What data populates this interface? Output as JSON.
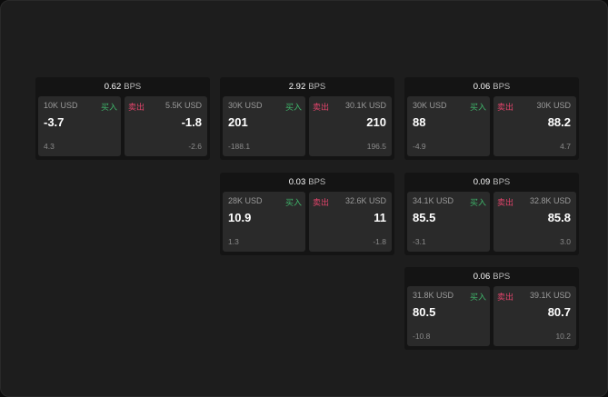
{
  "buy_label": "买入",
  "sell_label": "卖出",
  "unit": "BPS",
  "colors": {
    "buy": "#3fb66b",
    "sell": "#e0446b"
  },
  "panels": [
    {
      "spread": "0.62",
      "bid": {
        "size": "10K USD",
        "price": "-3.7",
        "sub": "4.3"
      },
      "ask": {
        "size": "5.5K USD",
        "price": "-1.8",
        "sub": "-2.6"
      }
    },
    {
      "spread": "2.92",
      "bid": {
        "size": "30K USD",
        "price": "201",
        "sub": "-188.1"
      },
      "ask": {
        "size": "30.1K USD",
        "price": "210",
        "sub": "196.5"
      }
    },
    {
      "spread": "0.06",
      "bid": {
        "size": "30K USD",
        "price": "88",
        "sub": "-4.9"
      },
      "ask": {
        "size": "30K USD",
        "price": "88.2",
        "sub": "4.7"
      }
    },
    {
      "spread": "0.03",
      "bid": {
        "size": "28K USD",
        "price": "10.9",
        "sub": "1.3"
      },
      "ask": {
        "size": "32.6K USD",
        "price": "11",
        "sub": "-1.8"
      }
    },
    {
      "spread": "0.09",
      "bid": {
        "size": "34.1K USD",
        "price": "85.5",
        "sub": "-3.1"
      },
      "ask": {
        "size": "32.8K USD",
        "price": "85.8",
        "sub": "3.0"
      }
    },
    {
      "spread": "0.06",
      "bid": {
        "size": "31.8K USD",
        "price": "80.5",
        "sub": "-10.8"
      },
      "ask": {
        "size": "39.1K USD",
        "price": "80.7",
        "sub": "10.2"
      }
    }
  ]
}
